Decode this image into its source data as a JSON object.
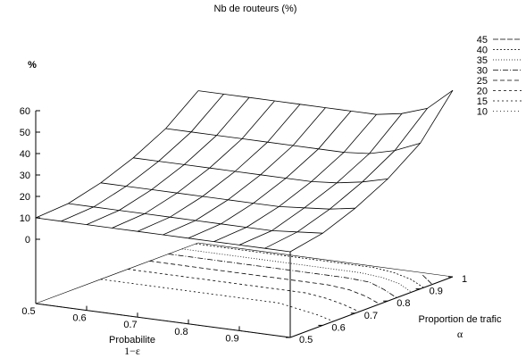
{
  "chart_data": {
    "type": "surface3d",
    "title": "Nb de routeurs (%)",
    "zlabel": "%",
    "xlabel": "Probabilite",
    "xlabel2": "1−ε",
    "ylabel": "Proportion de trafic",
    "ylabel2": "α",
    "x_ticks": [
      "0.5",
      "0.6",
      "0.7",
      "0.8",
      "0.9"
    ],
    "y_ticks": [
      "0.5",
      "0.6",
      "0.7",
      "0.8",
      "0.9",
      "1"
    ],
    "z_ticks": [
      "0",
      "10",
      "20",
      "30",
      "40",
      "50",
      "60"
    ],
    "legend": [
      "45",
      "40",
      "35",
      "30",
      "25",
      "20",
      "15",
      "10"
    ],
    "legend_placement": "top-right",
    "xlim": [
      0.5,
      1.0
    ],
    "ylim": [
      0.5,
      1.0
    ],
    "zlim": [
      0,
      60
    ],
    "grid_x": [
      0.5,
      0.55,
      0.6,
      0.65,
      0.7,
      0.75,
      0.8,
      0.85,
      0.9,
      0.95,
      1.0
    ],
    "grid_y": [
      0.5,
      0.6,
      0.7,
      0.8,
      0.9,
      1.0
    ],
    "z_values": [
      [
        10,
        10,
        10,
        10,
        10,
        10,
        10,
        10,
        10,
        10,
        10
      ],
      [
        11,
        11,
        11,
        11,
        11,
        11,
        11,
        11,
        11,
        12,
        13
      ],
      [
        15,
        15,
        15,
        15,
        15,
        15,
        15,
        15,
        16,
        17,
        19
      ],
      [
        21,
        21,
        21,
        21,
        21,
        21,
        21,
        21,
        22,
        24,
        27
      ],
      [
        29,
        29,
        29,
        29,
        29,
        29,
        29,
        29,
        30,
        33,
        38
      ],
      [
        41,
        41,
        41,
        41,
        41,
        41,
        41,
        41,
        43,
        47,
        57
      ]
    ]
  }
}
